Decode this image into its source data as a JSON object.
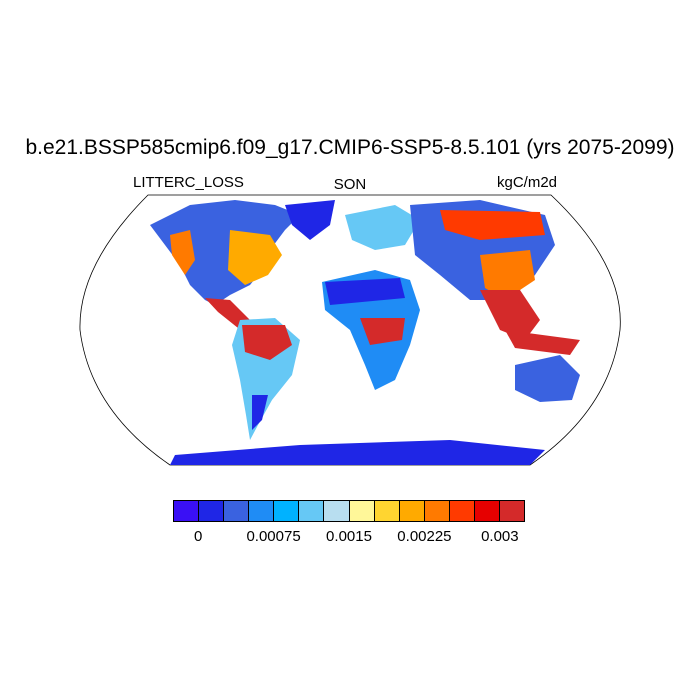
{
  "title": "b.e21.BSSP585cmip6.f09_g17.CMIP6-SSP5-8.5.101 (yrs 2075-2099)",
  "subtitle_left": "LITTERC_LOSS",
  "subtitle_center": "SON",
  "subtitle_right": "kgC/m2d",
  "colorbar": {
    "colors": [
      "#3a10f5",
      "#1f26e6",
      "#3a62e0",
      "#1f8cf5",
      "#00b2ff",
      "#66c8f5",
      "#b8def0",
      "#fff799",
      "#ffd530",
      "#ffaa00",
      "#ff7a00",
      "#ff3a00",
      "#e60000",
      "#d42a2a"
    ],
    "labels": [
      "0",
      "0.00075",
      "0.0015",
      "0.00225",
      "0.003"
    ]
  },
  "legend_colors": {
    "ocean": "#ffffff",
    "low": "#1f26e6",
    "mid": "#66c8f5",
    "high": "#d42a2a"
  }
}
